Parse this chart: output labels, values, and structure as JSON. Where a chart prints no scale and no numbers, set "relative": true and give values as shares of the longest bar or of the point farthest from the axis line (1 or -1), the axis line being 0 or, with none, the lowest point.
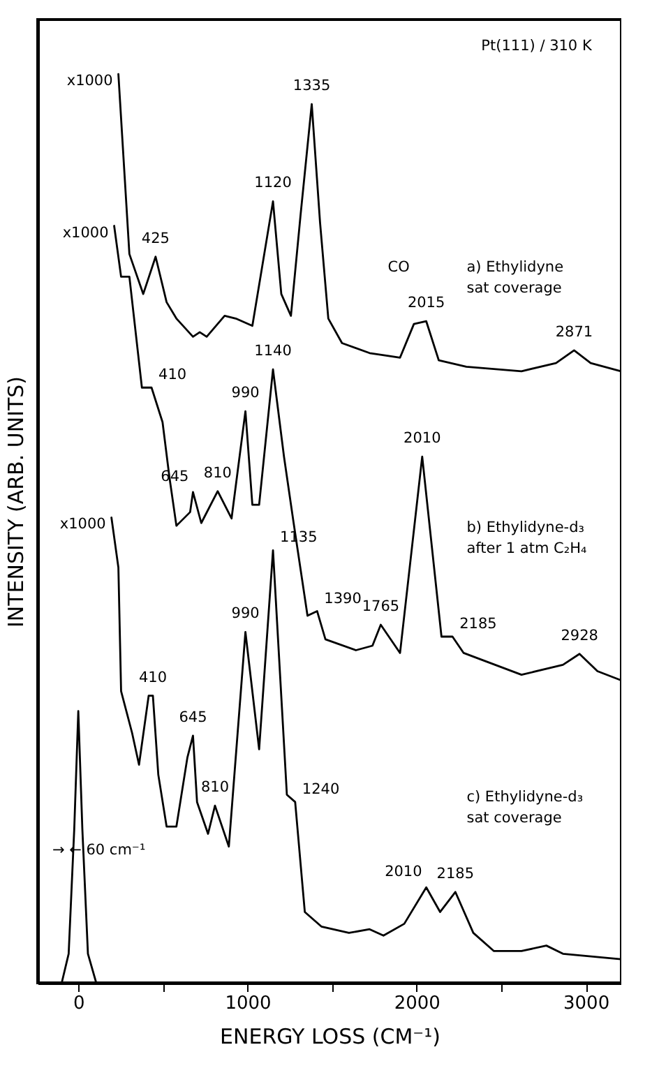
{
  "chart_data": {
    "type": "line",
    "relative": true,
    "xlabel": "ENERGY LOSS (CM⁻¹)",
    "ylabel": "INTENSITY (ARB. UNITS)",
    "xlim": [
      -240,
      3210
    ],
    "xticks": [
      0,
      {
        "value": 500,
        "label": null
      },
      1000,
      {
        "value": 1500,
        "label": null
      },
      2000,
      {
        "value": 2500,
        "label": null
      },
      3000
    ],
    "grid": false,
    "legend": false,
    "line_style": "solid",
    "marker": "none",
    "series": [
      {
        "color": "#000000",
        "x": [
          237,
          302,
          384,
          457,
          522,
          580,
          678,
          718,
          759,
          865,
          931,
          1029,
          1151,
          1200,
          1257,
          1314,
          1380,
          1429,
          1478,
          1559,
          1722,
          1902,
          1984,
          2057,
          2131,
          2294,
          2620,
          2824,
          2931,
          3029,
          3208
        ],
        "values": [
          1.0,
          0.802,
          0.758,
          0.799,
          0.749,
          0.731,
          0.711,
          0.716,
          0.711,
          0.734,
          0.731,
          0.723,
          0.86,
          0.758,
          0.734,
          0.845,
          0.967,
          0.837,
          0.731,
          0.704,
          0.693,
          0.688,
          0.725,
          0.728,
          0.685,
          0.678,
          0.673,
          0.682,
          0.696,
          0.682,
          0.673
        ]
      },
      {
        "color": "#000000",
        "x": [
          212,
          253,
          302,
          376,
          433,
          498,
          539,
          580,
          661,
          678,
          727,
          824,
          906,
          988,
          1029,
          1069,
          1151,
          1216,
          1273,
          1355,
          1412,
          1461,
          1641,
          1739,
          1788,
          1902,
          2033,
          2147,
          2212,
          2278,
          2335,
          2620,
          2865,
          2963,
          3069,
          3208
        ],
        "values": [
          0.833,
          0.777,
          0.777,
          0.655,
          0.655,
          0.617,
          0.556,
          0.503,
          0.518,
          0.54,
          0.506,
          0.541,
          0.511,
          0.629,
          0.526,
          0.526,
          0.675,
          0.579,
          0.506,
          0.404,
          0.409,
          0.378,
          0.366,
          0.371,
          0.394,
          0.363,
          0.579,
          0.381,
          0.381,
          0.363,
          0.359,
          0.339,
          0.35,
          0.362,
          0.343,
          0.333
        ]
      },
      {
        "color": "#000000",
        "x": [
          196,
          237,
          253,
          318,
          359,
          416,
          441,
          473,
          522,
          580,
          645,
          678,
          702,
          767,
          808,
          890,
          988,
          1069,
          1151,
          1233,
          1282,
          1339,
          1437,
          1600,
          1722,
          1804,
          1927,
          2057,
          2139,
          2229,
          2335,
          2457,
          2620,
          2767,
          2865,
          3208
        ],
        "values": [
          0.512,
          0.457,
          0.321,
          0.275,
          0.24,
          0.316,
          0.316,
          0.229,
          0.172,
          0.172,
          0.248,
          0.272,
          0.199,
          0.164,
          0.195,
          0.15,
          0.386,
          0.257,
          0.476,
          0.207,
          0.199,
          0.078,
          0.062,
          0.055,
          0.059,
          0.052,
          0.065,
          0.105,
          0.078,
          0.1,
          0.055,
          0.035,
          0.035,
          0.041,
          0.032,
          0.026
        ]
      },
      {
        "color": "#000000",
        "x": [
          -98,
          -57,
          -24,
          0,
          24,
          57,
          106
        ],
        "values": [
          0,
          0.032,
          0.169,
          0.299,
          0.169,
          0.032,
          0
        ]
      }
    ],
    "annotations": [
      "Pt(111) / 310 K",
      {
        "text": "x1000",
        "x": 237,
        "y": 1.0
      },
      {
        "text": "x1000",
        "x": 212,
        "y": 0.833
      },
      {
        "text": "x1000",
        "x": 196,
        "y": 0.512
      },
      {
        "text": "425",
        "x": 457,
        "y": 0.799
      },
      {
        "text": "1120",
        "x": 1151,
        "y": 0.86
      },
      {
        "text": "1335",
        "x": 1380,
        "y": 0.967
      },
      {
        "text": "2015",
        "x": 2057,
        "y": 0.728
      },
      {
        "text": "2871",
        "x": 2931,
        "y": 0.696
      },
      "CO",
      "a) Ethylidyne\nsat coverage",
      {
        "text": "410",
        "x": 433,
        "y": 0.655
      },
      {
        "text": "645",
        "x": 678,
        "y": 0.54
      },
      {
        "text": "810",
        "x": 824,
        "y": 0.541
      },
      {
        "text": "990",
        "x": 988,
        "y": 0.629
      },
      {
        "text": "1140",
        "x": 1151,
        "y": 0.675
      },
      {
        "text": "1390",
        "x": 1412,
        "y": 0.409
      },
      {
        "text": "1765",
        "x": 1788,
        "y": 0.394
      },
      {
        "text": "2010",
        "x": 2033,
        "y": 0.579
      },
      {
        "text": "2185",
        "x": 2212,
        "y": 0.381
      },
      {
        "text": "2928",
        "x": 2963,
        "y": 0.362
      },
      "b) Ethylidyne-d₃\nafter 1 atm C₂H₄",
      {
        "text": "410",
        "x": 441,
        "y": 0.316
      },
      {
        "text": "645",
        "x": 678,
        "y": 0.272
      },
      {
        "text": "810",
        "x": 808,
        "y": 0.195
      },
      {
        "text": "990",
        "x": 988,
        "y": 0.386
      },
      {
        "text": "1135",
        "x": 1151,
        "y": 0.476
      },
      {
        "text": "1240",
        "x": 1282,
        "y": 0.199
      },
      {
        "text": "2010",
        "x": 2057,
        "y": 0.105
      },
      {
        "text": "2185",
        "x": 2229,
        "y": 0.1
      },
      "c) Ethylidyne-d₃\nsat coverage",
      "→     ← 60 cm⁻¹"
    ]
  }
}
